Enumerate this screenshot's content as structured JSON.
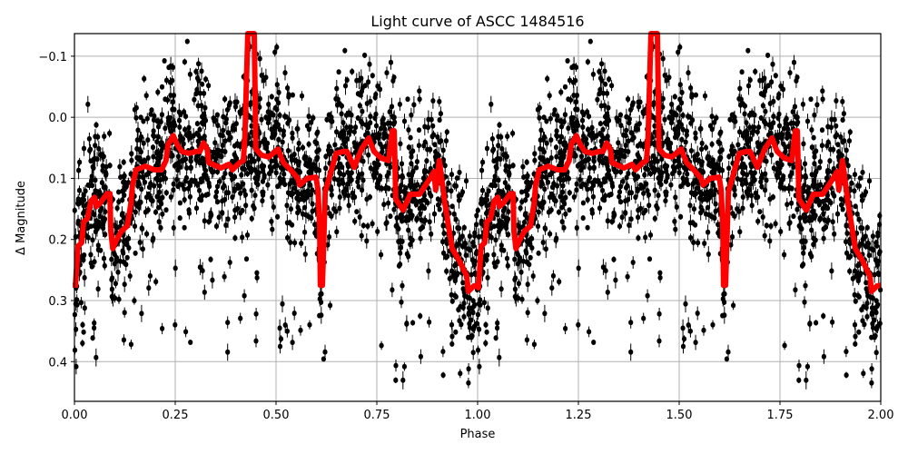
{
  "chart_data": {
    "type": "scatter",
    "title": "Light curve of ASCC 1484516",
    "xlabel": "Phase",
    "ylabel": "Δ Magnitude",
    "xlim": [
      0.0,
      2.0
    ],
    "ylim": [
      0.465,
      -0.137
    ],
    "y_inverted": true,
    "grid": true,
    "legend": null,
    "x_ticks": [
      0.0,
      0.25,
      0.5,
      0.75,
      1.0,
      1.25,
      1.5,
      1.75,
      2.0
    ],
    "x_tick_labels": [
      "0.00",
      "0.25",
      "0.50",
      "0.75",
      "1.00",
      "1.25",
      "1.50",
      "1.75",
      "2.00"
    ],
    "y_ticks": [
      -0.1,
      0.0,
      0.1,
      0.2,
      0.3,
      0.4
    ],
    "y_tick_labels": [
      "−0.1",
      "0.0",
      "0.1",
      "0.2",
      "0.3",
      "0.4"
    ],
    "series": [
      {
        "name": "observations",
        "kind": "errorbar-scatter",
        "color": "#000000",
        "description": "Thousands of black points with error bars, densest between magnitude -0.05 and 0.25, phase-folded and repeated over two cycles"
      },
      {
        "name": "binned mean curve",
        "kind": "line",
        "color": "#ff0000",
        "period_repeats": 2,
        "phase": [
          0.002,
          0.009,
          0.018,
          0.023,
          0.032,
          0.041,
          0.05,
          0.054,
          0.063,
          0.081,
          0.088,
          0.09,
          0.095,
          0.104,
          0.117,
          0.131,
          0.14,
          0.144,
          0.153,
          0.176,
          0.198,
          0.216,
          0.227,
          0.232,
          0.245,
          0.255,
          0.266,
          0.284,
          0.302,
          0.311,
          0.32,
          0.329,
          0.333,
          0.363,
          0.383,
          0.392,
          0.41,
          0.419,
          0.423,
          0.43,
          0.446,
          0.45,
          0.464,
          0.482,
          0.505,
          0.518,
          0.536,
          0.554,
          0.559,
          0.577,
          0.599,
          0.604,
          0.608,
          0.61,
          0.615,
          0.622,
          0.635,
          0.649,
          0.667,
          0.676,
          0.694,
          0.712,
          0.73,
          0.743,
          0.761,
          0.779,
          0.788,
          0.793,
          0.797,
          0.815,
          0.833,
          0.856,
          0.878,
          0.892,
          0.896,
          0.905,
          0.919,
          0.937,
          0.955,
          0.973,
          0.977,
          0.991,
          1.0
        ],
        "magnitude": [
          0.279,
          0.211,
          0.205,
          0.171,
          0.166,
          0.137,
          0.131,
          0.146,
          0.141,
          0.125,
          0.125,
          0.186,
          0.215,
          0.201,
          0.186,
          0.178,
          0.141,
          0.111,
          0.086,
          0.08,
          0.086,
          0.086,
          0.071,
          0.045,
          0.03,
          0.045,
          0.056,
          0.059,
          0.056,
          0.056,
          0.042,
          0.052,
          0.074,
          0.083,
          0.077,
          0.086,
          0.074,
          0.071,
          0.03,
          -0.138,
          -0.138,
          0.052,
          0.062,
          0.065,
          0.052,
          0.074,
          0.086,
          0.1,
          0.111,
          0.1,
          0.098,
          0.119,
          0.178,
          0.275,
          0.275,
          0.122,
          0.092,
          0.059,
          0.056,
          0.056,
          0.082,
          0.052,
          0.034,
          0.056,
          0.067,
          0.071,
          0.022,
          0.022,
          0.134,
          0.152,
          0.126,
          0.126,
          0.104,
          0.089,
          0.119,
          0.071,
          0.141,
          0.215,
          0.235,
          0.26,
          0.285,
          0.276,
          0.275
        ]
      }
    ]
  }
}
